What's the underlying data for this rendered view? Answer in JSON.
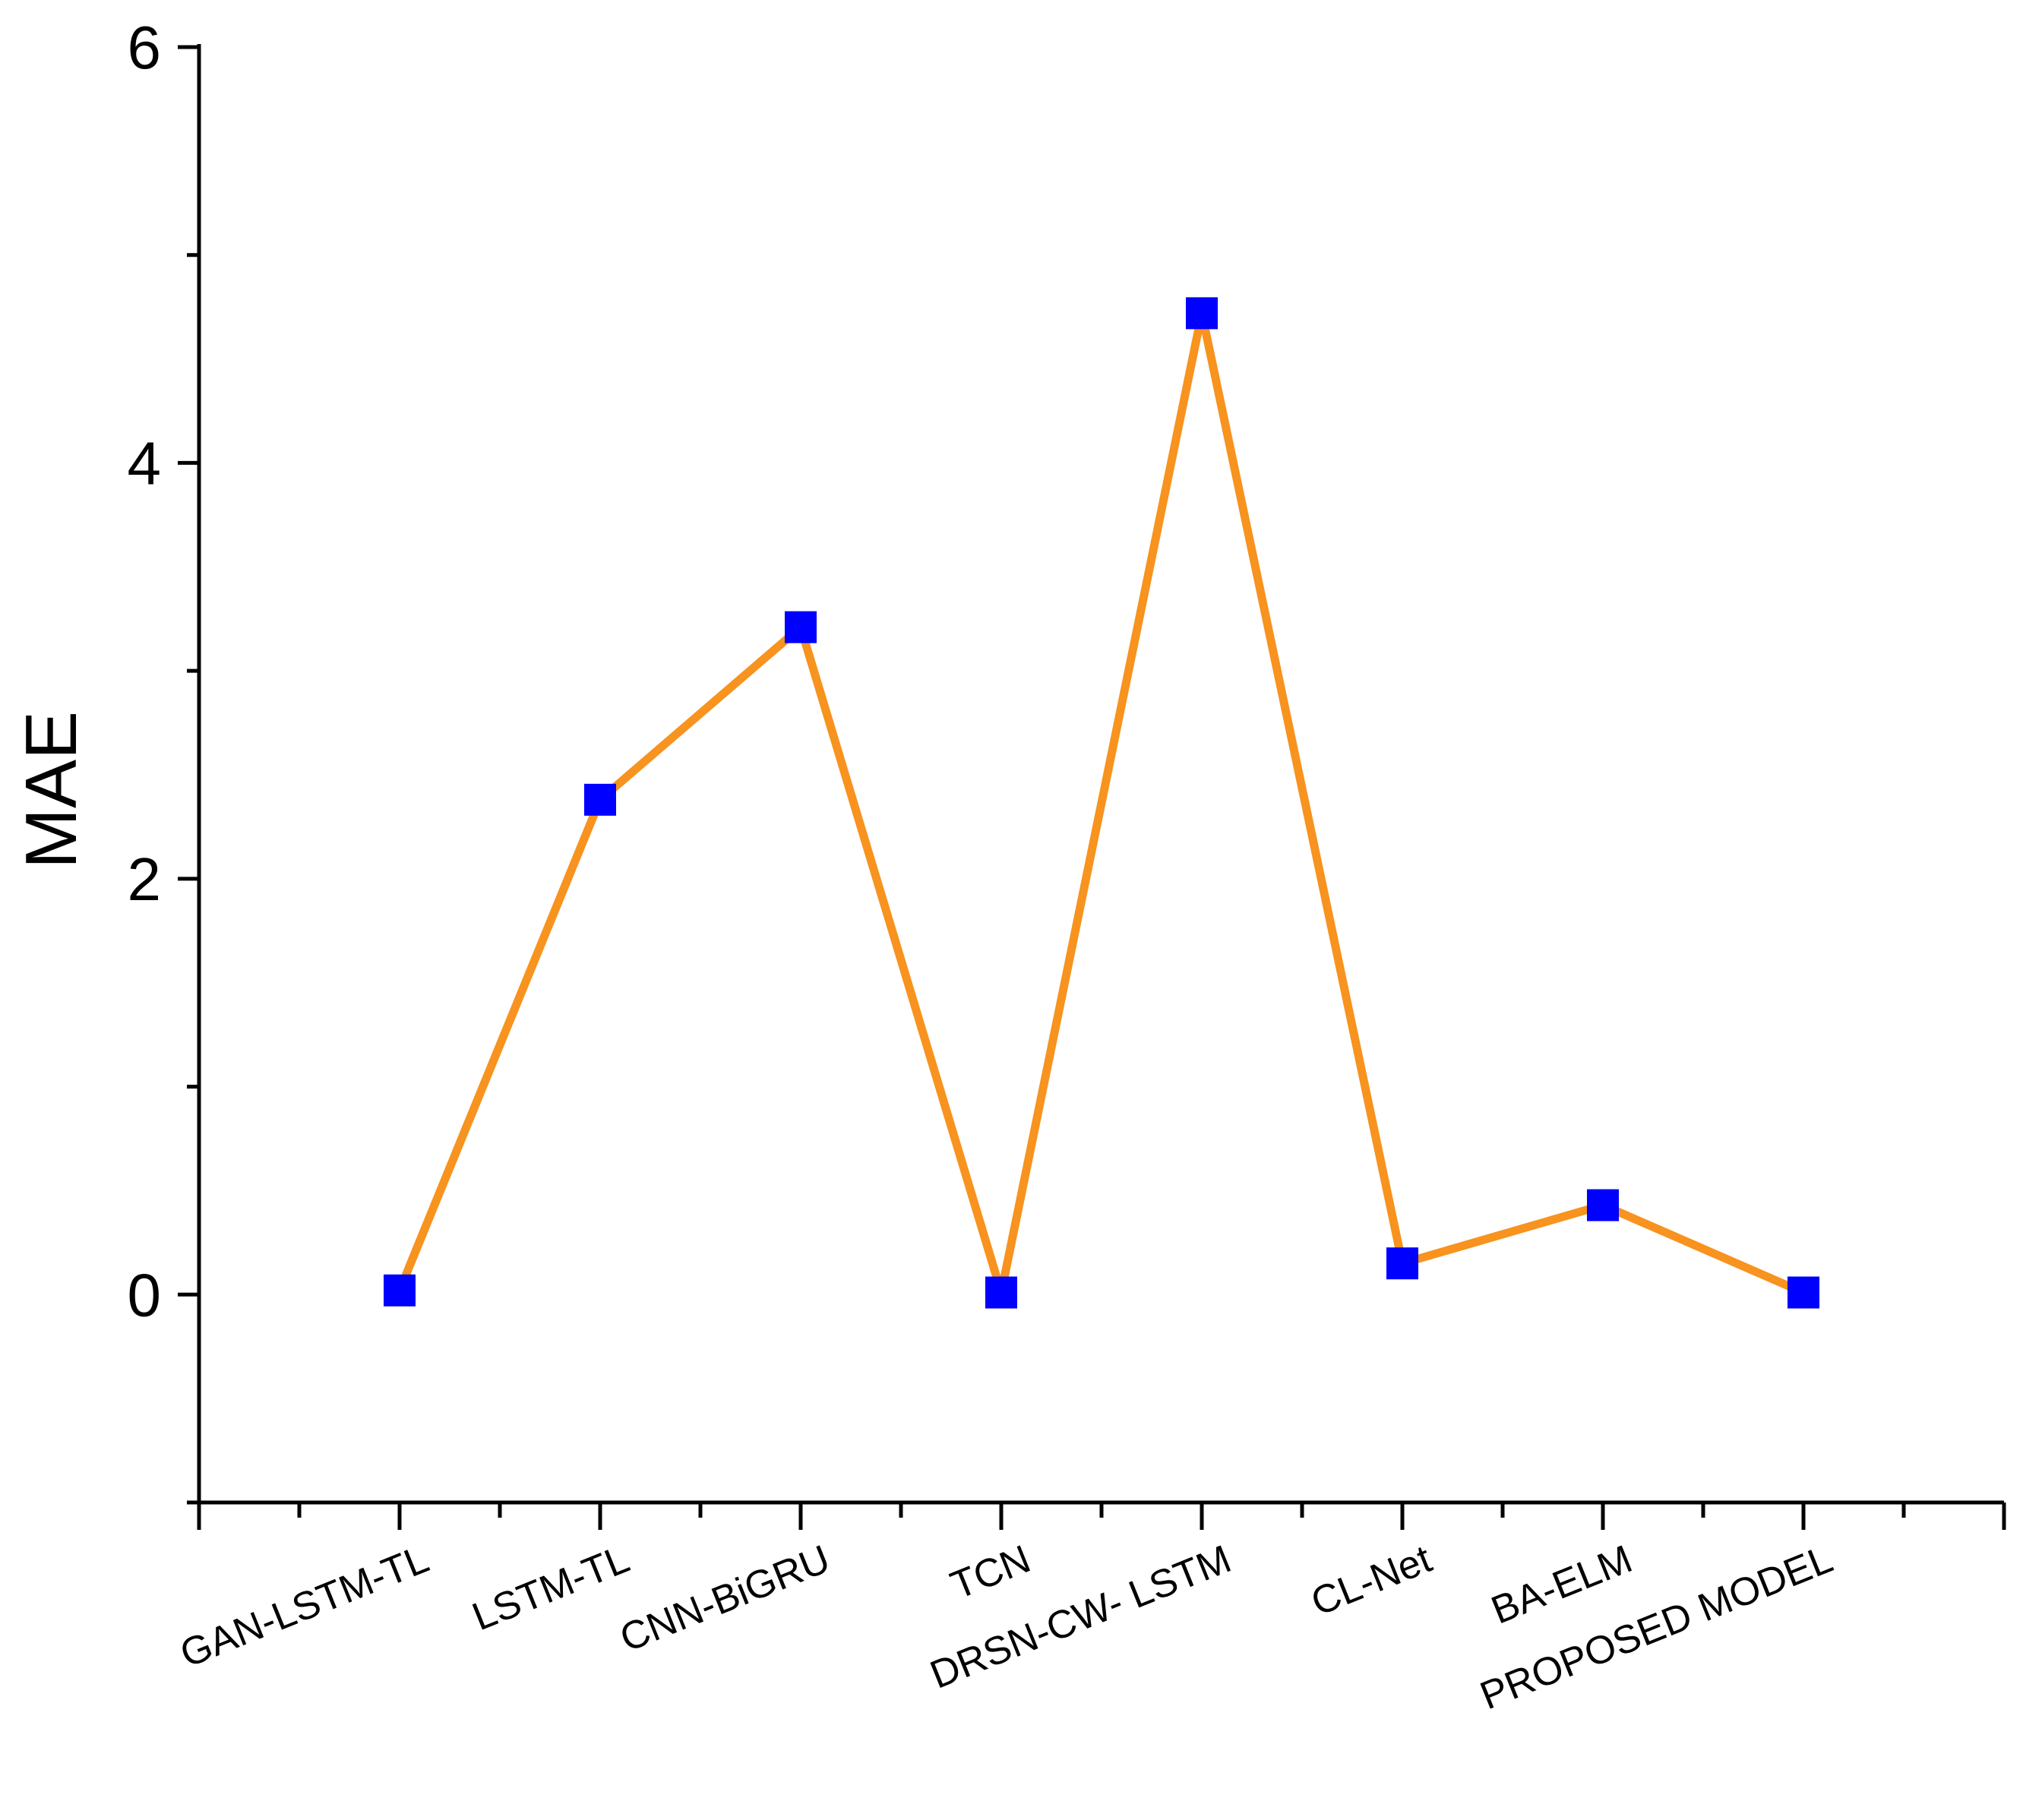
{
  "chart_data": {
    "type": "line",
    "title": "",
    "xlabel": "",
    "ylabel": "MAE",
    "categories": [
      "GAN-LSTM-TL",
      "LSTM-TL",
      "CNN-BiGRU",
      "TCN",
      "DRSN-CW- LSTM",
      "CL-Net",
      "BA-ELM",
      "PROPOSED MODEL"
    ],
    "series": [
      {
        "values": [
          0.02,
          2.38,
          3.21,
          0.01,
          4.72,
          0.15,
          0.43,
          0.01
        ],
        "line_color": "#F7931E",
        "marker_color": "#0000FF",
        "marker": "square"
      }
    ],
    "ylim": [
      -1,
      6
    ],
    "yticks": [
      0,
      2,
      4,
      6
    ],
    "yticks_minor": [
      -1,
      1,
      3,
      5
    ],
    "x_range": [
      0,
      9
    ],
    "grid": false,
    "legend": "none"
  }
}
